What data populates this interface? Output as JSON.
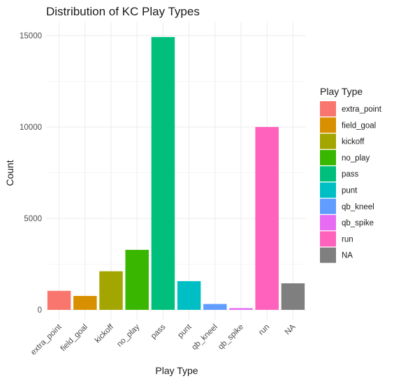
{
  "chart_data": {
    "type": "bar",
    "title": "Distribution of KC Play Types",
    "xlabel": "Play Type",
    "ylabel": "Count",
    "categories": [
      "extra_point",
      "field_goal",
      "kickoff",
      "no_play",
      "pass",
      "punt",
      "qb_kneel",
      "qb_spike",
      "run",
      "NA"
    ],
    "values": [
      1040,
      760,
      2110,
      3280,
      14920,
      1570,
      320,
      95,
      10000,
      1450
    ],
    "colors": [
      "#F8766D",
      "#D89000",
      "#A3A500",
      "#39B600",
      "#00BF7D",
      "#00BFC4",
      "#619CFF",
      "#E76BF3",
      "#FF62BC",
      "#7F7F7F"
    ],
    "ylim": [
      0,
      16000
    ],
    "yticks": [
      0,
      5000,
      10000,
      15000
    ],
    "grid": true,
    "legend": {
      "title": "Play Type",
      "placement": "right",
      "entries": [
        "extra_point",
        "field_goal",
        "kickoff",
        "no_play",
        "pass",
        "punt",
        "qb_kneel",
        "qb_spike",
        "run",
        "NA"
      ]
    }
  }
}
